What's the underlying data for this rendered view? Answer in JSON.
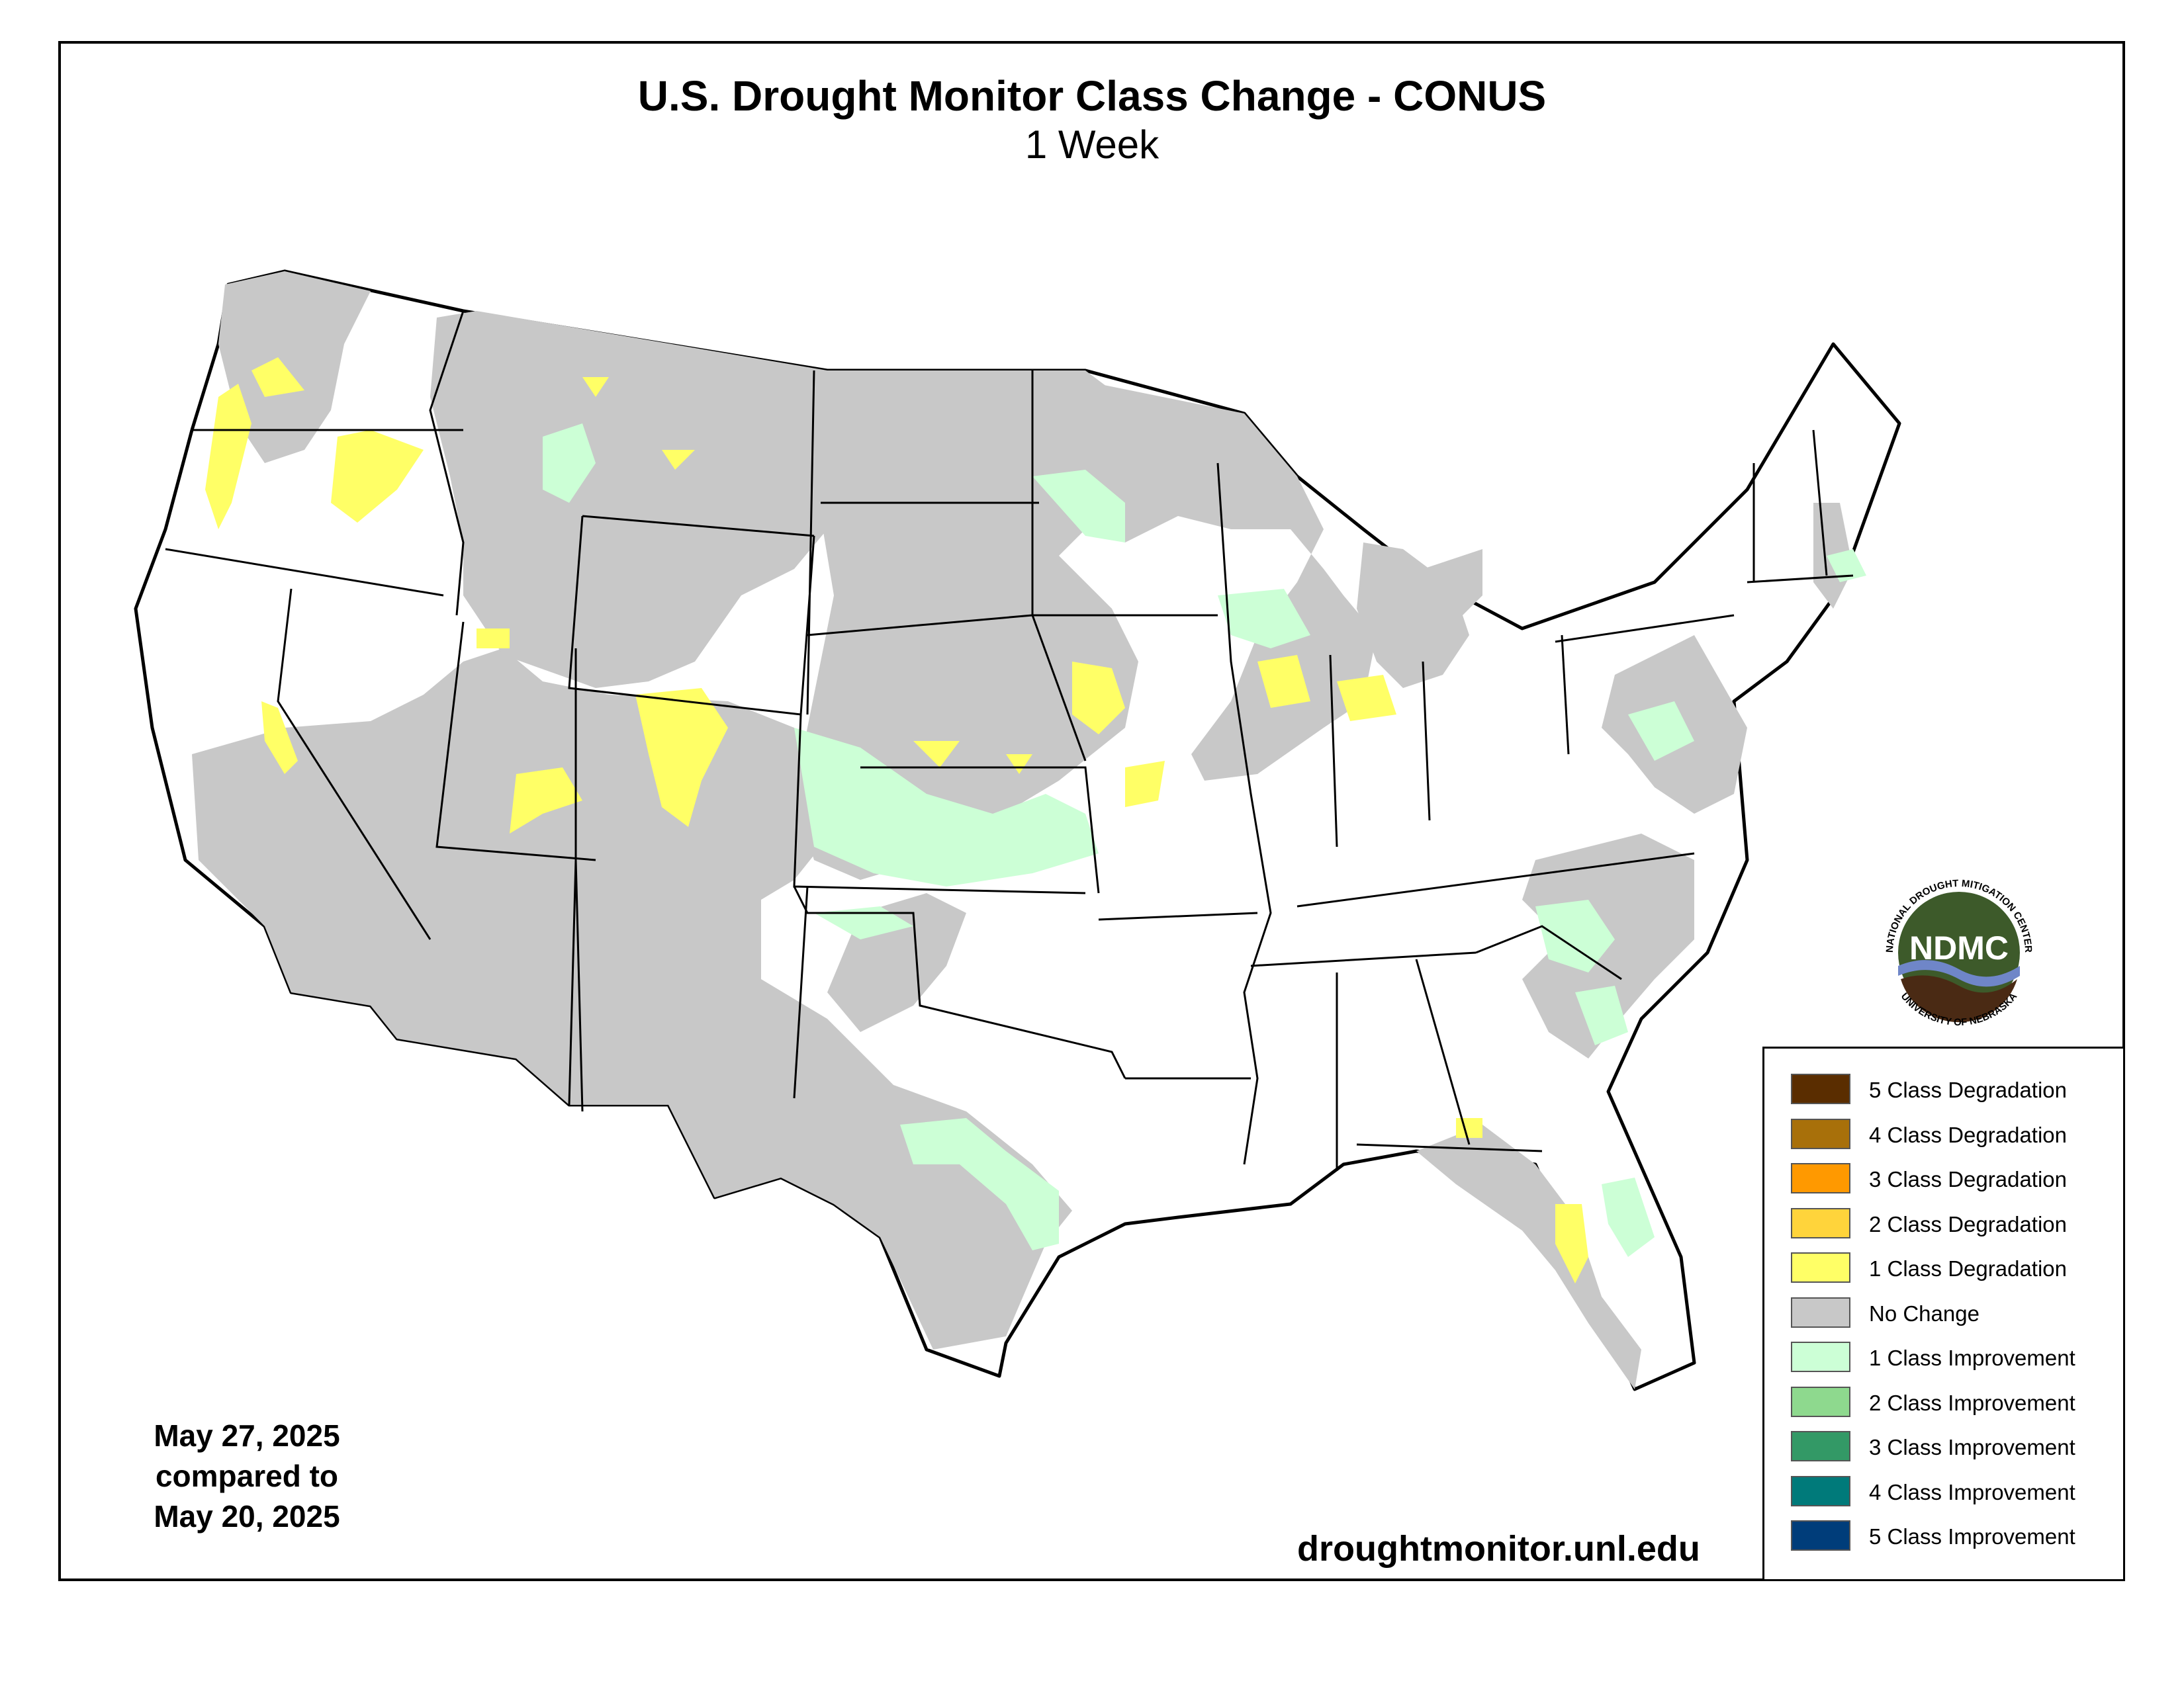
{
  "title": "U.S. Drought Monitor Class Change - CONUS",
  "subtitle": "1 Week",
  "date": {
    "current": "May 27, 2025",
    "compared": "compared to",
    "previous": "May 20, 2025"
  },
  "url": "droughtmonitor.unl.edu",
  "logo": {
    "acronym": "NDMC",
    "ring_top": "NATIONAL DROUGHT MITIGATION CENTER",
    "ring_bottom": "UNIVERSITY OF NEBRASKA"
  },
  "legend": [
    {
      "label": "5 Class Degradation",
      "color": "#5a2d00"
    },
    {
      "label": "4 Class Degradation",
      "color": "#a8700a"
    },
    {
      "label": "3 Class Degradation",
      "color": "#ff9900"
    },
    {
      "label": "2 Class Degradation",
      "color": "#ffd43b"
    },
    {
      "label": "1 Class Degradation",
      "color": "#ffff66"
    },
    {
      "label": "No Change",
      "color": "#c8c8c8"
    },
    {
      "label": "1 Class Improvement",
      "color": "#ccffd6"
    },
    {
      "label": "2 Class Improvement",
      "color": "#8ed98e"
    },
    {
      "label": "3 Class Improvement",
      "color": "#339966"
    },
    {
      "label": "4 Class Improvement",
      "color": "#007a7a"
    },
    {
      "label": "5 Class Improvement",
      "color": "#003d7a"
    }
  ],
  "colors": {
    "no_change": "#c8c8c8",
    "degradation_1": "#ffff66",
    "improvement_1": "#ccffd6",
    "logo_green": "#3d5a2a",
    "logo_brown": "#4a2a14",
    "logo_blue": "#6f86c8"
  }
}
